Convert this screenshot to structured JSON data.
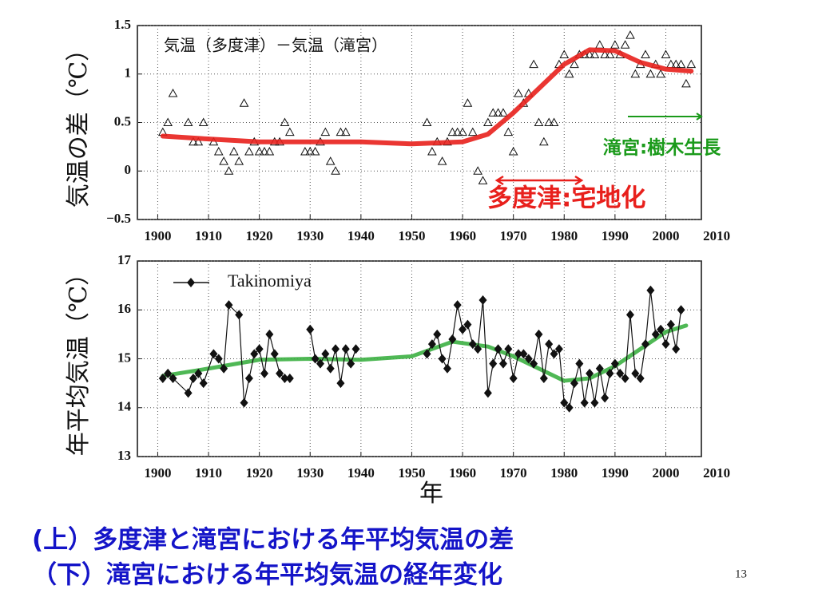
{
  "chart_data": [
    {
      "type": "scatter",
      "ylabel": "気温の差（℃）",
      "annotation": "気温（多度津）－気温（滝宮）",
      "annotations": [
        {
          "text": "滝宮:樹木生長",
          "color": "#1a9a1a"
        },
        {
          "text": "多度津:宅地化",
          "color": "#e8201c"
        }
      ],
      "xlim": [
        1896,
        2007
      ],
      "xticks": [
        1900,
        1910,
        1920,
        1930,
        1940,
        1950,
        1960,
        1970,
        1980,
        1990,
        2000,
        2010
      ],
      "ylim": [
        -0.5,
        1.5
      ],
      "yticks": [
        {
          "value": -0.5,
          "label": "−0.5"
        },
        0,
        0.5,
        1,
        1.5
      ],
      "grid": true,
      "series": [
        {
          "color": "#111111",
          "marker": "triangle",
          "line": false,
          "x": [
            1901,
            1902,
            1903,
            1906,
            1907,
            1908,
            1909,
            1911,
            1912,
            1913,
            1914,
            1915,
            1916,
            1917,
            1918,
            1919,
            1920,
            1921,
            1922,
            1923,
            1924,
            1925,
            1926,
            1929,
            1930,
            1931,
            1932,
            1933,
            1934,
            1935,
            1936,
            1937,
            1953,
            1954,
            1955,
            1956,
            1957,
            1958,
            1959,
            1960,
            1961,
            1962,
            1963,
            1964,
            1965,
            1966,
            1967,
            1968,
            1969,
            1970,
            1971,
            1972,
            1973,
            1974,
            1975,
            1976,
            1977,
            1978,
            1979,
            1980,
            1981,
            1982,
            1983,
            1984,
            1985,
            1986,
            1987,
            1988,
            1989,
            1990,
            1991,
            1992,
            1993,
            1994,
            1995,
            1996,
            1997,
            1998,
            1999,
            2000,
            2001,
            2002,
            2003,
            2004,
            2005
          ],
          "values": [
            0.4,
            0.5,
            0.8,
            0.5,
            0.3,
            0.3,
            0.5,
            0.3,
            0.2,
            0.1,
            0,
            0.2,
            0.1,
            0.7,
            0.2,
            0.3,
            0.2,
            0.2,
            0.2,
            0.3,
            0.3,
            0.5,
            0.4,
            0.2,
            0.2,
            0.2,
            0.3,
            0.4,
            0.1,
            0,
            0.4,
            0.4,
            0.5,
            0.2,
            0.3,
            0.1,
            0.3,
            0.4,
            0.4,
            0.4,
            0.7,
            0.4,
            0,
            -0.1,
            0.5,
            0.6,
            0.6,
            0.6,
            0.4,
            0.2,
            0.8,
            0.7,
            0.8,
            1.1,
            0.5,
            0.3,
            0.5,
            0.5,
            1.1,
            1.2,
            1.0,
            1.1,
            1.2,
            1.2,
            1.2,
            1.2,
            1.3,
            1.2,
            1.2,
            1.3,
            1.2,
            1.3,
            1.4,
            1.0,
            1.1,
            1.2,
            1.0,
            1.1,
            1.0,
            1.2,
            1.1,
            1.1,
            1.1,
            0.9,
            1.1
          ]
        },
        {
          "color": "#e8201c",
          "marker": null,
          "line": true,
          "width": 6,
          "x": [
            1901,
            1910,
            1920,
            1930,
            1940,
            1950,
            1960,
            1965,
            1970,
            1975,
            1980,
            1985,
            1990,
            1995,
            2000,
            2005
          ],
          "values": [
            0.36,
            0.33,
            0.3,
            0.3,
            0.3,
            0.28,
            0.3,
            0.38,
            0.6,
            0.85,
            1.1,
            1.25,
            1.24,
            1.12,
            1.05,
            1.03
          ]
        }
      ]
    },
    {
      "type": "line",
      "ylabel": "年平均気温（℃）",
      "xlabel": "年",
      "xlim": [
        1896,
        2007
      ],
      "xticks": [
        1900,
        1910,
        1920,
        1930,
        1940,
        1950,
        1960,
        1970,
        1980,
        1990,
        2000,
        2010
      ],
      "ylim": [
        13,
        17
      ],
      "yticks": [
        13,
        14,
        15,
        16,
        17
      ],
      "grid": true,
      "legend": "upper left",
      "series": [
        {
          "color": "#3cb043",
          "marker": null,
          "line": true,
          "width": 5,
          "x": [
            1901,
            1910,
            1920,
            1930,
            1940,
            1950,
            1958,
            1965,
            1970,
            1975,
            1980,
            1985,
            1990,
            1995,
            2000,
            2004
          ],
          "values": [
            14.65,
            14.8,
            14.98,
            15.0,
            14.98,
            15.05,
            15.35,
            15.25,
            15.05,
            14.8,
            14.55,
            14.6,
            14.85,
            15.2,
            15.55,
            15.68
          ]
        },
        {
          "name": "Takinomiya",
          "color": "#111111",
          "marker": "diamond",
          "line": true,
          "width": 1.2,
          "x": [
            1901,
            1902,
            1903,
            1906,
            1907,
            1908,
            1909,
            1911,
            1912,
            1913,
            1914,
            1916,
            1917,
            1918,
            1919,
            1920,
            1921,
            1922,
            1923,
            1924,
            1925,
            1926,
            1928,
            1930,
            1931,
            1932,
            1933,
            1934,
            1935,
            1936,
            1937,
            1938,
            1939,
            1945,
            1953,
            1954,
            1955,
            1956,
            1957,
            1958,
            1959,
            1960,
            1961,
            1962,
            1963,
            1964,
            1965,
            1966,
            1967,
            1968,
            1969,
            1970,
            1971,
            1972,
            1973,
            1974,
            1975,
            1976,
            1977,
            1978,
            1979,
            1980,
            1981,
            1982,
            1983,
            1984,
            1985,
            1986,
            1987,
            1988,
            1989,
            1990,
            1991,
            1992,
            1993,
            1994,
            1995,
            1996,
            1997,
            1998,
            1999,
            2000,
            2001,
            2002,
            2003
          ],
          "values": [
            14.6,
            14.7,
            14.6,
            14.3,
            14.6,
            14.7,
            14.5,
            15.1,
            15.0,
            14.8,
            16.1,
            15.9,
            14.1,
            14.6,
            15.1,
            15.2,
            14.7,
            15.5,
            15.1,
            14.7,
            14.6,
            14.6,
            null,
            15.6,
            15.0,
            14.9,
            15.1,
            14.8,
            15.2,
            14.5,
            15.2,
            14.9,
            15.2,
            null,
            15.1,
            15.3,
            15.5,
            15.0,
            14.8,
            15.4,
            16.1,
            15.6,
            15.7,
            15.3,
            15.2,
            16.2,
            14.3,
            14.9,
            15.2,
            14.9,
            15.2,
            14.6,
            15.1,
            15.1,
            15.0,
            14.9,
            15.5,
            14.6,
            15.3,
            15.1,
            15.2,
            14.1,
            14.0,
            14.5,
            14.9,
            14.1,
            14.7,
            14.1,
            14.8,
            14.2,
            14.7,
            14.9,
            14.7,
            14.6,
            15.9,
            14.7,
            14.6,
            15.3,
            16.4,
            15.5,
            15.6,
            15.3,
            15.7,
            15.2,
            16.0
          ]
        }
      ]
    }
  ],
  "footer": {
    "line1": "(上）多度津と滝宮における年平均気温の差",
    "line2": "（下）滝宮における年平均気温の経年変化",
    "page": "13"
  }
}
